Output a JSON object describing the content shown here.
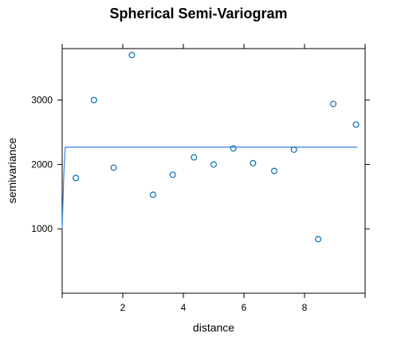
{
  "chart_data": {
    "type": "scatter",
    "title": "Spherical Semi-Variogram",
    "xlabel": "distance",
    "ylabel": "semivariance",
    "xlim": [
      0,
      10
    ],
    "ylim": [
      0,
      3800
    ],
    "x_ticks": [
      2,
      4,
      6,
      8
    ],
    "x_tick_labels": [
      "2",
      "4",
      "6",
      "8"
    ],
    "y_ticks": [
      1000,
      2000,
      3000
    ],
    "y_tick_labels": [
      "1000",
      "2000",
      "3000"
    ],
    "grid": false,
    "point_color": "#0072B2",
    "line_color": "#3B7FE8",
    "series": [
      {
        "type": "scatter",
        "x": [
          0.45,
          1.05,
          1.7,
          2.3,
          3.0,
          3.65,
          4.35,
          5.0,
          5.65,
          6.3,
          7.0,
          7.65,
          8.45,
          8.95,
          9.7
        ],
        "y": [
          1790,
          3000,
          1950,
          3700,
          1530,
          1840,
          2110,
          2000,
          2250,
          2020,
          1900,
          2230,
          840,
          2940,
          2620
        ]
      },
      {
        "type": "line",
        "x": [
          0.0,
          0.05,
          0.1,
          9.75
        ],
        "y": [
          1000,
          1800,
          2270,
          2270
        ]
      }
    ]
  }
}
